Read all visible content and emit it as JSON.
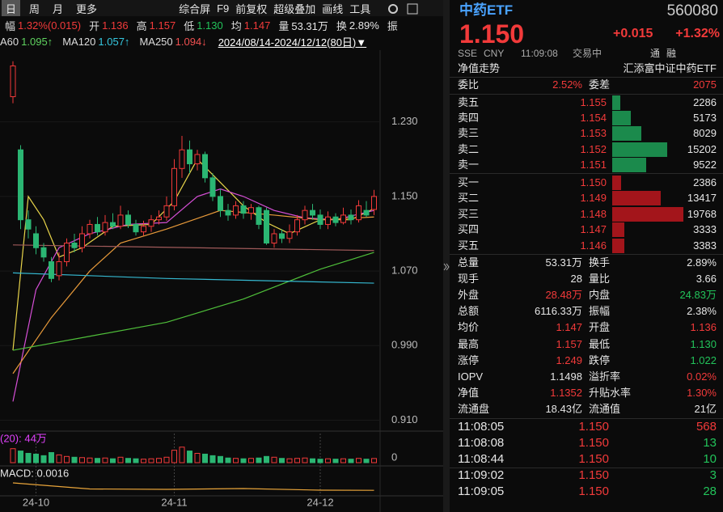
{
  "toolbar": {
    "periods": [
      "日",
      "周",
      "月",
      "更多"
    ],
    "tools": [
      "综合屏",
      "F9",
      "前复权",
      "超级叠加",
      "画线",
      "工具"
    ]
  },
  "quote_line": [
    {
      "label": "幅",
      "value": "1.32%(0.015)",
      "color": "red"
    },
    {
      "label": "开",
      "value": "1.136",
      "color": "red"
    },
    {
      "label": "高",
      "value": "1.157",
      "color": "red"
    },
    {
      "label": "低",
      "value": "1.130",
      "color": "green"
    },
    {
      "label": "均",
      "value": "1.147",
      "color": "red"
    },
    {
      "label": "量",
      "value": "53.31万",
      "color": "white"
    },
    {
      "label": "换",
      "value": "2.89%",
      "color": "white"
    },
    {
      "label": "振"
    }
  ],
  "ma_line": {
    "items": [
      {
        "label": "A60",
        "value": "1.095↑",
        "color": "#5fd35f"
      },
      {
        "label": "MA120",
        "value": "1.057↑",
        "color": "#35c8e0"
      },
      {
        "label": "MA250",
        "value": "1.094↓",
        "color": "#f05050"
      }
    ],
    "range": "2024/08/14-2024/12/12(80日)▼"
  },
  "chart_data": {
    "type": "candlestick",
    "up_color": "#f23a3a",
    "down_color": "#2bb673",
    "grid": true,
    "ylim": [
      0.9,
      1.3
    ],
    "yticks": [
      {
        "value": 1.23,
        "label": "1.230"
      },
      {
        "value": 1.15,
        "label": "1.150"
      },
      {
        "value": 1.07,
        "label": "1.070"
      },
      {
        "value": 0.99,
        "label": "0.990"
      },
      {
        "value": 0.91,
        "label": "0.910"
      }
    ],
    "xticks": [
      {
        "value": 3,
        "label": "24-10"
      },
      {
        "value": 21,
        "label": "24-11"
      },
      {
        "value": 40,
        "label": "24-12"
      }
    ],
    "open": [
      1.257,
      1.2,
      1.125,
      1.11,
      1.095,
      1.08,
      1.065,
      1.08,
      1.1,
      1.095,
      1.11,
      1.12,
      1.112,
      1.122,
      1.118,
      1.13,
      1.12,
      1.112,
      1.118,
      1.125,
      1.128,
      1.14,
      1.18,
      1.2,
      1.185,
      1.195,
      1.17,
      1.15,
      1.135,
      1.13,
      1.14,
      1.132,
      1.138,
      1.135,
      1.1,
      1.11,
      1.105,
      1.112,
      1.125,
      1.135,
      1.13,
      1.12,
      1.128,
      1.122,
      1.13,
      1.125,
      1.135,
      1.136
    ],
    "close": [
      1.29,
      1.125,
      1.115,
      1.095,
      1.085,
      1.062,
      1.08,
      1.1,
      1.095,
      1.11,
      1.12,
      1.112,
      1.122,
      1.118,
      1.13,
      1.12,
      1.112,
      1.118,
      1.125,
      1.128,
      1.14,
      1.18,
      1.2,
      1.185,
      1.195,
      1.17,
      1.15,
      1.135,
      1.13,
      1.14,
      1.132,
      1.138,
      1.12,
      1.1,
      1.11,
      1.105,
      1.112,
      1.125,
      1.135,
      1.13,
      1.12,
      1.128,
      1.122,
      1.13,
      1.125,
      1.14,
      1.13,
      1.15
    ],
    "high": [
      1.295,
      1.205,
      1.135,
      1.118,
      1.1,
      1.085,
      1.09,
      1.105,
      1.11,
      1.118,
      1.125,
      1.128,
      1.13,
      1.132,
      1.14,
      1.135,
      1.125,
      1.124,
      1.13,
      1.135,
      1.15,
      1.19,
      1.215,
      1.21,
      1.2,
      1.198,
      1.175,
      1.158,
      1.142,
      1.145,
      1.145,
      1.142,
      1.14,
      1.138,
      1.115,
      1.115,
      1.12,
      1.13,
      1.14,
      1.142,
      1.136,
      1.134,
      1.132,
      1.138,
      1.136,
      1.146,
      1.145,
      1.157
    ],
    "low": [
      1.25,
      1.115,
      1.105,
      1.088,
      1.08,
      1.058,
      1.06,
      1.075,
      1.09,
      1.09,
      1.105,
      1.108,
      1.108,
      1.115,
      1.115,
      1.116,
      1.108,
      1.108,
      1.112,
      1.12,
      1.124,
      1.135,
      1.17,
      1.175,
      1.178,
      1.165,
      1.145,
      1.128,
      1.124,
      1.126,
      1.126,
      1.125,
      1.115,
      1.098,
      1.095,
      1.1,
      1.1,
      1.108,
      1.12,
      1.125,
      1.115,
      1.115,
      1.118,
      1.12,
      1.12,
      1.122,
      1.128,
      1.13
    ],
    "lines": [
      {
        "color": "#e8d44a",
        "x": [
          0,
          2,
          4,
          6,
          9,
          13,
          18,
          21,
          24,
          27,
          30,
          33,
          36,
          40,
          44,
          47
        ],
        "values": [
          0.985,
          1.15,
          1.125,
          1.085,
          1.095,
          1.118,
          1.12,
          1.145,
          1.19,
          1.165,
          1.14,
          1.122,
          1.11,
          1.125,
          1.125,
          1.137
        ]
      },
      {
        "color": "#d64fd6",
        "x": [
          0,
          3,
          6,
          10,
          15,
          20,
          24,
          27,
          30,
          34,
          38,
          42,
          47
        ],
        "values": [
          0.93,
          1.05,
          1.095,
          1.11,
          1.12,
          1.122,
          1.15,
          1.158,
          1.15,
          1.135,
          1.127,
          1.125,
          1.135
        ]
      },
      {
        "color": "#e89a3a",
        "x": [
          0,
          5,
          10,
          14,
          20,
          27,
          34,
          40,
          47
        ],
        "values": [
          0.96,
          1.02,
          1.07,
          1.1,
          1.115,
          1.135,
          1.13,
          1.125,
          1.128
        ]
      },
      {
        "color": "#a05a5a",
        "x": [
          0,
          47
        ],
        "values": [
          1.098,
          1.092
        ]
      },
      {
        "color": "#4fbf3a",
        "x": [
          0,
          10,
          20,
          30,
          40,
          47
        ],
        "values": [
          0.985,
          1.0,
          1.015,
          1.04,
          1.072,
          1.09
        ]
      },
      {
        "color": "#35b8d0",
        "x": [
          0,
          20,
          47
        ],
        "values": [
          1.068,
          1.062,
          1.057
        ]
      }
    ]
  },
  "volume": {
    "label": "(20): 44万",
    "ylim": [
      0,
      250
    ],
    "yticks": [
      0
    ],
    "values": [
      180,
      150,
      120,
      110,
      90,
      130,
      100,
      80,
      70,
      65,
      60,
      55,
      60,
      50,
      70,
      55,
      50,
      45,
      50,
      55,
      70,
      160,
      200,
      150,
      120,
      110,
      90,
      80,
      60,
      55,
      50,
      55,
      60,
      80,
      70,
      55,
      50,
      55,
      60,
      50,
      45,
      50,
      45,
      50,
      45,
      55,
      45,
      53.31
    ]
  },
  "macd": {
    "label": "MACD: 0.0016",
    "color": "#e8a43a",
    "ylim": [
      -0.01,
      0.03
    ],
    "x": [
      0,
      10,
      20,
      30,
      40,
      47
    ],
    "values": [
      0.02,
      0.005,
      0.004,
      0.006,
      0.002,
      0.0016
    ]
  },
  "panel": {
    "name": "中药ETF",
    "code": "560080",
    "price": "1.150",
    "change": "+0.015",
    "pct": "+1.32%",
    "status": [
      "SSE",
      "CNY",
      "11:09:08",
      "交易中"
    ],
    "flags": [
      "通",
      "融"
    ],
    "nav_tab": "净值走势",
    "fund": "汇添富中证中药ETF",
    "ratio": {
      "label": "委比",
      "value": "2.52%",
      "label2": "委差",
      "value2": "2075"
    },
    "book": {
      "price_color": "red",
      "asks": [
        {
          "label": "卖五",
          "price": "1.155",
          "volume": 2286
        },
        {
          "label": "卖四",
          "price": "1.154",
          "volume": 5173
        },
        {
          "label": "卖三",
          "price": "1.153",
          "volume": 8029
        },
        {
          "label": "卖二",
          "price": "1.152",
          "volume": 15202
        },
        {
          "label": "卖一",
          "price": "1.151",
          "volume": 9522
        }
      ],
      "bids": [
        {
          "label": "买一",
          "price": "1.150",
          "volume": 2386
        },
        {
          "label": "买二",
          "price": "1.149",
          "volume": 13417
        },
        {
          "label": "买三",
          "price": "1.148",
          "volume": 19768
        },
        {
          "label": "买四",
          "price": "1.147",
          "volume": 3333
        },
        {
          "label": "买五",
          "price": "1.146",
          "volume": 3383
        }
      ]
    },
    "stats": [
      {
        "label": "总量",
        "value": "53.31万",
        "color": "white",
        "label2": "换手",
        "value2": "2.89%",
        "color2": "white"
      },
      {
        "label": "现手",
        "value": "28",
        "color": "white",
        "label2": "量比",
        "value2": "3.66",
        "color2": "white"
      },
      {
        "label": "外盘",
        "value": "28.48万",
        "color": "red",
        "label2": "内盘",
        "value2": "24.83万",
        "color2": "green"
      },
      {
        "label": "总额",
        "value": "6116.33万",
        "color": "white",
        "label2": "振幅",
        "value2": "2.38%",
        "color2": "white"
      },
      {
        "label": "均价",
        "value": "1.147",
        "color": "red",
        "label2": "开盘",
        "value2": "1.136",
        "color2": "red"
      },
      {
        "label": "最高",
        "value": "1.157",
        "color": "red",
        "label2": "最低",
        "value2": "1.130",
        "color2": "green"
      },
      {
        "label": "涨停",
        "value": "1.249",
        "color": "red",
        "label2": "跌停",
        "value2": "1.022",
        "color2": "green"
      },
      {
        "label": "IOPV",
        "value": "1.1498",
        "color": "white",
        "label2": "溢折率",
        "value2": "0.02%",
        "color2": "red"
      },
      {
        "label": "净值",
        "value": "1.1352",
        "color": "red",
        "label2": "升贴水率",
        "value2": "1.30%",
        "color2": "red"
      },
      {
        "label": "流通盘",
        "value": "18.43亿",
        "color": "white",
        "label2": "流通值",
        "value2": "21亿",
        "color2": "white"
      }
    ],
    "trades": [
      {
        "time": "11:08:05",
        "price": "1.150",
        "volume": 568,
        "color": "red"
      },
      {
        "time": "11:08:08",
        "price": "1.150",
        "volume": 13,
        "color": "green"
      },
      {
        "time": "11:08:44",
        "price": "1.150",
        "volume": 10,
        "color": "green"
      },
      {
        "time": "11:09:02",
        "price": "1.150",
        "volume": 3,
        "color": "green"
      },
      {
        "time": "11:09:05",
        "price": "1.150",
        "volume": 28,
        "color": "green"
      }
    ]
  }
}
